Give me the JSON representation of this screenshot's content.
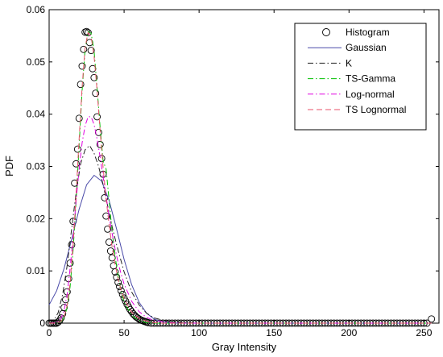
{
  "chart_data": {
    "type": "line",
    "title": "",
    "xlabel": "Gray Intensity",
    "ylabel": "PDF",
    "xlim": [
      0,
      260
    ],
    "ylim": [
      0,
      0.06
    ],
    "xticks": [
      0,
      50,
      100,
      150,
      200,
      250
    ],
    "xtick_labels": [
      "0",
      "50",
      "100",
      "150",
      "200",
      "250"
    ],
    "yticks": [
      0,
      0.01,
      0.02,
      0.03,
      0.04,
      0.05,
      0.06
    ],
    "ytick_labels": [
      "0",
      "0.01",
      "0.02",
      "0.03",
      "0.04",
      "0.05",
      "0.06"
    ],
    "grid": false,
    "legend_position": "top-right",
    "series": [
      {
        "name": "Histogram",
        "kind": "markers",
        "marker": "open-circle",
        "color": "#000000",
        "points": [
          [
            0,
            0
          ],
          [
            1,
            0
          ],
          [
            2,
            0
          ],
          [
            3,
            0
          ],
          [
            4,
            0
          ],
          [
            5,
            0
          ],
          [
            6,
            0.0002
          ],
          [
            7,
            0.0005
          ],
          [
            8,
            0.001
          ],
          [
            9,
            0.0018
          ],
          [
            10,
            0.003
          ],
          [
            11,
            0.0045
          ],
          [
            12,
            0.006
          ],
          [
            13,
            0.0085
          ],
          [
            14,
            0.0115
          ],
          [
            15,
            0.015
          ],
          [
            16,
            0.0195
          ],
          [
            17,
            0.0268
          ],
          [
            18,
            0.0305
          ],
          [
            19,
            0.0333
          ],
          [
            20,
            0.0392
          ],
          [
            21,
            0.0457
          ],
          [
            22,
            0.0492
          ],
          [
            23,
            0.0524
          ],
          [
            24,
            0.0557
          ],
          [
            25,
            0.0558
          ],
          [
            26,
            0.0556
          ],
          [
            27,
            0.0537
          ],
          [
            28,
            0.0522
          ],
          [
            29,
            0.0487
          ],
          [
            30,
            0.047
          ],
          [
            31,
            0.044
          ],
          [
            32,
            0.0395
          ],
          [
            33,
            0.0365
          ],
          [
            34,
            0.0342
          ],
          [
            35,
            0.0315
          ],
          [
            36,
            0.0285
          ],
          [
            37,
            0.024
          ],
          [
            38,
            0.0205
          ],
          [
            39,
            0.018
          ],
          [
            40,
            0.0155
          ],
          [
            41,
            0.0138
          ],
          [
            42,
            0.0125
          ],
          [
            43,
            0.011
          ],
          [
            44,
            0.0098
          ],
          [
            45,
            0.0088
          ],
          [
            46,
            0.0078
          ],
          [
            47,
            0.007
          ],
          [
            48,
            0.0062
          ],
          [
            49,
            0.0055
          ],
          [
            50,
            0.0048
          ],
          [
            51,
            0.0042
          ],
          [
            52,
            0.0036
          ],
          [
            53,
            0.0031
          ],
          [
            54,
            0.0026
          ],
          [
            55,
            0.0022
          ],
          [
            56,
            0.0018
          ],
          [
            57,
            0.0015
          ],
          [
            58,
            0.0012
          ],
          [
            59,
            0.001
          ],
          [
            60,
            0.0008
          ],
          [
            61,
            0.0006
          ],
          [
            62,
            0.0005
          ],
          [
            63,
            0.0004
          ],
          [
            64,
            0.0003
          ],
          [
            65,
            0.0002
          ],
          [
            66,
            0.0001
          ],
          [
            68,
            0
          ],
          [
            70,
            0
          ],
          [
            72,
            0
          ],
          [
            74,
            0
          ],
          [
            76,
            0
          ],
          [
            78,
            0
          ],
          [
            80,
            0
          ],
          [
            82,
            0
          ],
          [
            84,
            0
          ],
          [
            86,
            0
          ],
          [
            88,
            0
          ],
          [
            90,
            0
          ],
          [
            92,
            0
          ],
          [
            94,
            0
          ],
          [
            96,
            0
          ],
          [
            98,
            0
          ],
          [
            100,
            0
          ],
          [
            102,
            0
          ],
          [
            104,
            0
          ],
          [
            106,
            0
          ],
          [
            108,
            0
          ],
          [
            110,
            0
          ],
          [
            112,
            0
          ],
          [
            114,
            0
          ],
          [
            116,
            0
          ],
          [
            118,
            0
          ],
          [
            120,
            0
          ],
          [
            122,
            0
          ],
          [
            124,
            0
          ],
          [
            126,
            0
          ],
          [
            128,
            0
          ],
          [
            130,
            0
          ],
          [
            132,
            0
          ],
          [
            134,
            0
          ],
          [
            136,
            0
          ],
          [
            138,
            0
          ],
          [
            140,
            0
          ],
          [
            142,
            0
          ],
          [
            144,
            0
          ],
          [
            146,
            0
          ],
          [
            148,
            0
          ],
          [
            150,
            0
          ],
          [
            152,
            0
          ],
          [
            154,
            0
          ],
          [
            156,
            0
          ],
          [
            158,
            0
          ],
          [
            160,
            0
          ],
          [
            162,
            0
          ],
          [
            164,
            0
          ],
          [
            166,
            0
          ],
          [
            168,
            0
          ],
          [
            170,
            0
          ],
          [
            172,
            0
          ],
          [
            174,
            0
          ],
          [
            176,
            0
          ],
          [
            178,
            0
          ],
          [
            180,
            0
          ],
          [
            182,
            0
          ],
          [
            184,
            0
          ],
          [
            186,
            0
          ],
          [
            188,
            0
          ],
          [
            190,
            0
          ],
          [
            192,
            0
          ],
          [
            194,
            0
          ],
          [
            196,
            0
          ],
          [
            198,
            0
          ],
          [
            200,
            0
          ],
          [
            202,
            0
          ],
          [
            204,
            0
          ],
          [
            206,
            0
          ],
          [
            208,
            0
          ],
          [
            210,
            0
          ],
          [
            212,
            0
          ],
          [
            214,
            0
          ],
          [
            216,
            0
          ],
          [
            218,
            0
          ],
          [
            220,
            0
          ],
          [
            222,
            0
          ],
          [
            224,
            0
          ],
          [
            226,
            0
          ],
          [
            228,
            0
          ],
          [
            230,
            0
          ],
          [
            232,
            0
          ],
          [
            234,
            0
          ],
          [
            236,
            0
          ],
          [
            238,
            0
          ],
          [
            240,
            0
          ],
          [
            242,
            0
          ],
          [
            244,
            0
          ],
          [
            246,
            0
          ],
          [
            248,
            0
          ],
          [
            250,
            0
          ],
          [
            252,
            0
          ],
          [
            255,
            0.0008
          ]
        ]
      },
      {
        "name": "Gaussian",
        "kind": "line",
        "dash": "solid",
        "color": "#4a4aa8",
        "points": [
          [
            0,
            0.0035
          ],
          [
            5,
            0.0062
          ],
          [
            10,
            0.0105
          ],
          [
            15,
            0.016
          ],
          [
            20,
            0.0218
          ],
          [
            25,
            0.0265
          ],
          [
            30,
            0.0283
          ],
          [
            35,
            0.0272
          ],
          [
            40,
            0.0235
          ],
          [
            45,
            0.018
          ],
          [
            50,
            0.0122
          ],
          [
            55,
            0.0074
          ],
          [
            60,
            0.004
          ],
          [
            65,
            0.0019
          ],
          [
            70,
            0.0008
          ],
          [
            75,
            0.0003
          ],
          [
            80,
            0.0001
          ],
          [
            85,
            0
          ],
          [
            255,
            0
          ]
        ]
      },
      {
        "name": "K",
        "kind": "line",
        "dash": "dash-dot",
        "color": "#222222",
        "points": [
          [
            0,
            0
          ],
          [
            3,
            0.0004
          ],
          [
            6,
            0.002
          ],
          [
            9,
            0.0055
          ],
          [
            12,
            0.011
          ],
          [
            15,
            0.018
          ],
          [
            18,
            0.025
          ],
          [
            21,
            0.0305
          ],
          [
            24,
            0.0332
          ],
          [
            27,
            0.034
          ],
          [
            30,
            0.0325
          ],
          [
            33,
            0.03
          ],
          [
            36,
            0.0265
          ],
          [
            39,
            0.0225
          ],
          [
            42,
            0.0185
          ],
          [
            45,
            0.015
          ],
          [
            50,
            0.0098
          ],
          [
            55,
            0.006
          ],
          [
            60,
            0.0035
          ],
          [
            65,
            0.0019
          ],
          [
            70,
            0.001
          ],
          [
            80,
            0.0003
          ],
          [
            90,
            0.0001
          ],
          [
            100,
            0
          ],
          [
            255,
            0
          ]
        ]
      },
      {
        "name": "TS-Gamma",
        "kind": "line",
        "dash": "dash-dot",
        "color": "#00c000",
        "points": [
          [
            0,
            0
          ],
          [
            5,
            0
          ],
          [
            8,
            0.0003
          ],
          [
            10,
            0.001
          ],
          [
            12,
            0.003
          ],
          [
            14,
            0.007
          ],
          [
            16,
            0.014
          ],
          [
            18,
            0.0235
          ],
          [
            20,
            0.034
          ],
          [
            22,
            0.0445
          ],
          [
            24,
            0.0525
          ],
          [
            26,
            0.0558
          ],
          [
            28,
            0.0555
          ],
          [
            30,
            0.052
          ],
          [
            32,
            0.045
          ],
          [
            34,
            0.0375
          ],
          [
            36,
            0.031
          ],
          [
            38,
            0.0295
          ],
          [
            40,
            0.0235
          ],
          [
            42,
            0.0175
          ],
          [
            44,
            0.0128
          ],
          [
            46,
            0.009
          ],
          [
            48,
            0.0062
          ],
          [
            50,
            0.004
          ],
          [
            55,
            0.0015
          ],
          [
            60,
            0.0005
          ],
          [
            65,
            0.0001
          ],
          [
            70,
            0
          ],
          [
            255,
            0
          ]
        ]
      },
      {
        "name": "Log-normal",
        "kind": "line",
        "dash": "dash-dot",
        "color": "#e000e0",
        "points": [
          [
            0,
            0
          ],
          [
            5,
            0.0001
          ],
          [
            8,
            0.001
          ],
          [
            10,
            0.0025
          ],
          [
            12,
            0.0055
          ],
          [
            14,
            0.0105
          ],
          [
            16,
            0.0165
          ],
          [
            18,
            0.0235
          ],
          [
            20,
            0.0295
          ],
          [
            22,
            0.0345
          ],
          [
            24,
            0.0378
          ],
          [
            26,
            0.0395
          ],
          [
            28,
            0.0395
          ],
          [
            30,
            0.038
          ],
          [
            32,
            0.0352
          ],
          [
            34,
            0.0318
          ],
          [
            36,
            0.028
          ],
          [
            38,
            0.0242
          ],
          [
            40,
            0.0205
          ],
          [
            42,
            0.0172
          ],
          [
            44,
            0.0142
          ],
          [
            46,
            0.0116
          ],
          [
            48,
            0.0094
          ],
          [
            50,
            0.0075
          ],
          [
            55,
            0.0042
          ],
          [
            60,
            0.0022
          ],
          [
            65,
            0.0011
          ],
          [
            70,
            0.0005
          ],
          [
            80,
            0.0001
          ],
          [
            90,
            0
          ],
          [
            255,
            0
          ]
        ]
      },
      {
        "name": "TS Lognormal",
        "kind": "line",
        "dash": "dashed",
        "color": "#e8506a",
        "points": [
          [
            0,
            0
          ],
          [
            5,
            0
          ],
          [
            8,
            0.0004
          ],
          [
            10,
            0.0012
          ],
          [
            12,
            0.0034
          ],
          [
            14,
            0.0078
          ],
          [
            16,
            0.015
          ],
          [
            18,
            0.0248
          ],
          [
            20,
            0.0352
          ],
          [
            22,
            0.0452
          ],
          [
            24,
            0.0528
          ],
          [
            26,
            0.0556
          ],
          [
            28,
            0.0548
          ],
          [
            30,
            0.051
          ],
          [
            32,
            0.0445
          ],
          [
            34,
            0.0368
          ],
          [
            36,
            0.0298
          ],
          [
            38,
            0.0238
          ],
          [
            40,
            0.0188
          ],
          [
            42,
            0.0146
          ],
          [
            44,
            0.0112
          ],
          [
            46,
            0.0085
          ],
          [
            48,
            0.0063
          ],
          [
            50,
            0.0047
          ],
          [
            55,
            0.0021
          ],
          [
            60,
            0.0009
          ],
          [
            65,
            0.0004
          ],
          [
            70,
            0.0001
          ],
          [
            75,
            0
          ],
          [
            255,
            0
          ]
        ]
      }
    ]
  }
}
